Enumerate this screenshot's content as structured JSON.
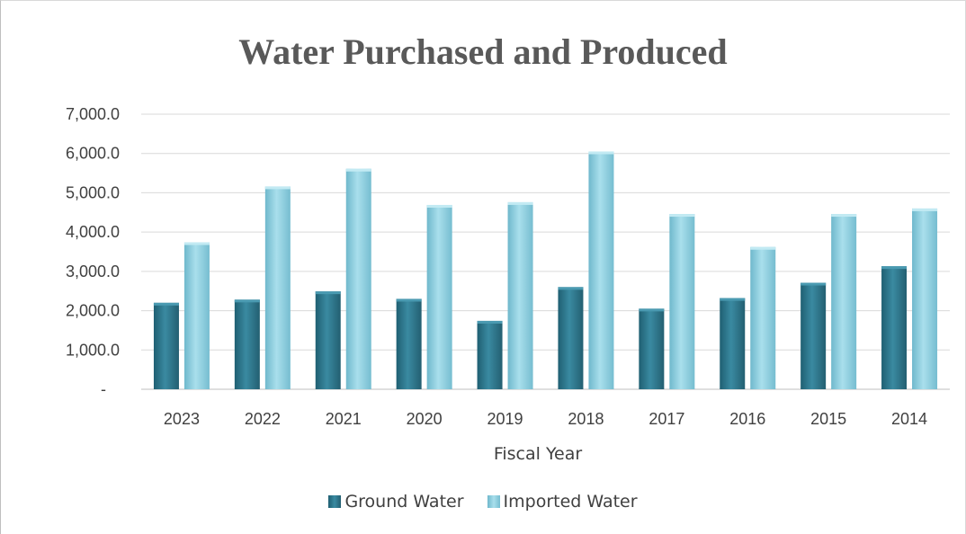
{
  "chart_data": {
    "type": "bar",
    "title": "Water Purchased and Produced",
    "xlabel": "Fiscal Year",
    "ylabel": "",
    "categories": [
      "2023",
      "2022",
      "2021",
      "2020",
      "2019",
      "2018",
      "2017",
      "2016",
      "2015",
      "2014"
    ],
    "series": [
      {
        "name": "Ground Water",
        "color": "#2f7d93",
        "values": [
          2200,
          2280,
          2490,
          2300,
          1740,
          2600,
          2050,
          2320,
          2710,
          3130
        ]
      },
      {
        "name": "Imported Water",
        "color": "#8fd0e0",
        "values": [
          3740,
          5160,
          5610,
          4690,
          4760,
          6050,
          4460,
          3620,
          4460,
          4600
        ]
      }
    ],
    "ylim": [
      0,
      7000
    ],
    "yticks": [
      0,
      1000,
      2000,
      3000,
      4000,
      5000,
      6000,
      7000
    ],
    "ytick_labels": [
      "-",
      "1,000.0",
      "2,000.0",
      "3,000.0",
      "4,000.0",
      "5,000.0",
      "6,000.0",
      "7,000.0"
    ],
    "grid": true,
    "legend_position": "bottom"
  }
}
